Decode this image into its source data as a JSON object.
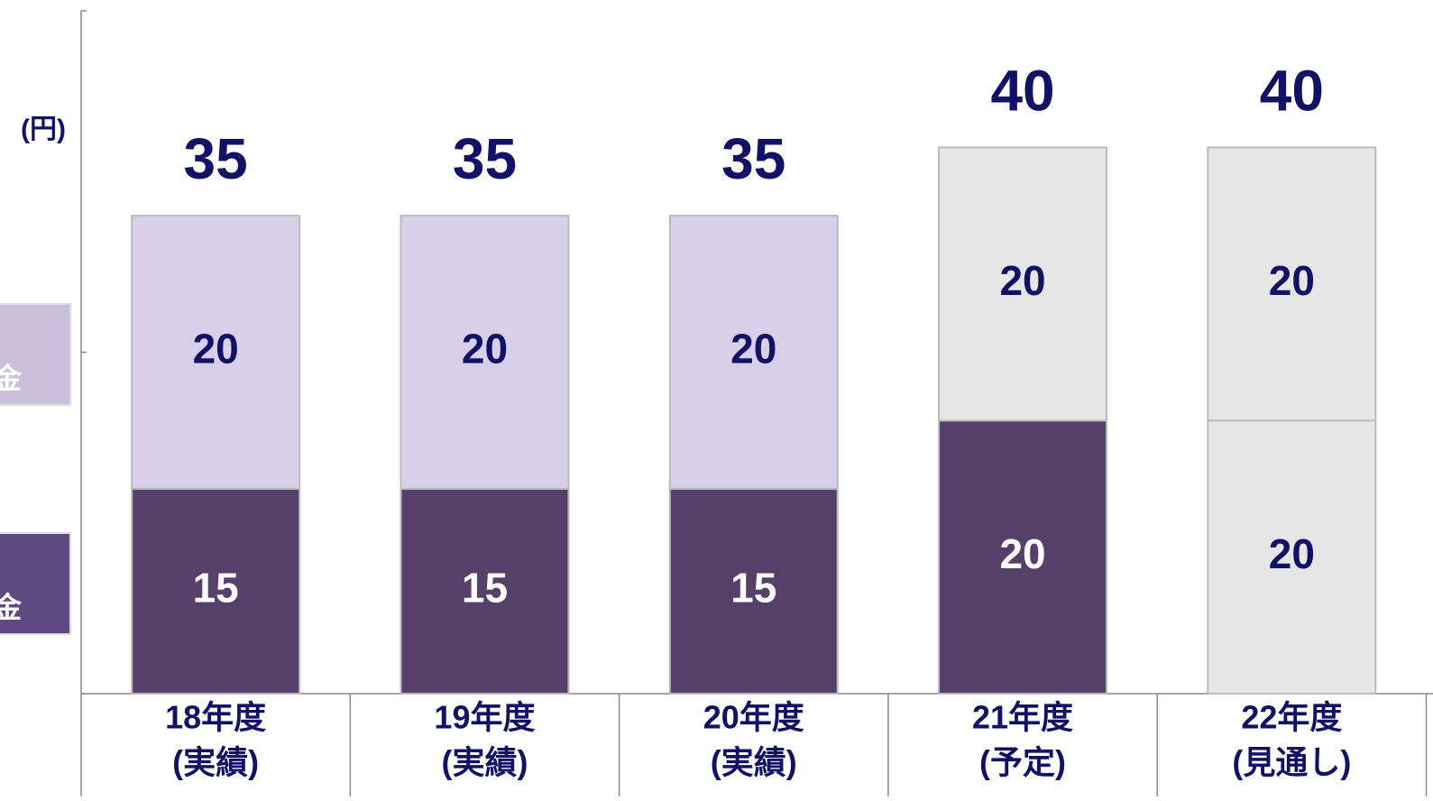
{
  "chart_data": {
    "type": "stacked_bar",
    "y_label": "(円)",
    "categories": [
      [
        "18年度",
        "(実績)"
      ],
      [
        "19年度",
        "(実績)"
      ],
      [
        "20年度",
        "(実績)"
      ],
      [
        "21年度",
        "(予定)"
      ],
      [
        "22年度",
        "(見通し)"
      ]
    ],
    "series": [
      {
        "name": "金",
        "color": "#5e4a80",
        "colors": [
          "#544069",
          "#544069",
          "#544069",
          "#544069",
          "#e6e6e6"
        ],
        "label_colors": [
          "#ffffff",
          "#ffffff",
          "#ffffff",
          "#ffffff",
          "#111166"
        ],
        "values": [
          15,
          15,
          15,
          20,
          20
        ]
      },
      {
        "name": "金",
        "color": "#cbc0dc",
        "colors": [
          "#d8cfe8",
          "#d8cfe8",
          "#d8cfe8",
          "#e6e6e6",
          "#e6e6e6"
        ],
        "label_colors": [
          "#111166",
          "#111166",
          "#111166",
          "#111166",
          "#111166"
        ],
        "values": [
          20,
          20,
          20,
          20,
          20
        ]
      }
    ],
    "totals": [
      35,
      35,
      35,
      40,
      40
    ],
    "ylim": [
      0,
      50
    ],
    "yticks": [
      0,
      25,
      50
    ]
  }
}
